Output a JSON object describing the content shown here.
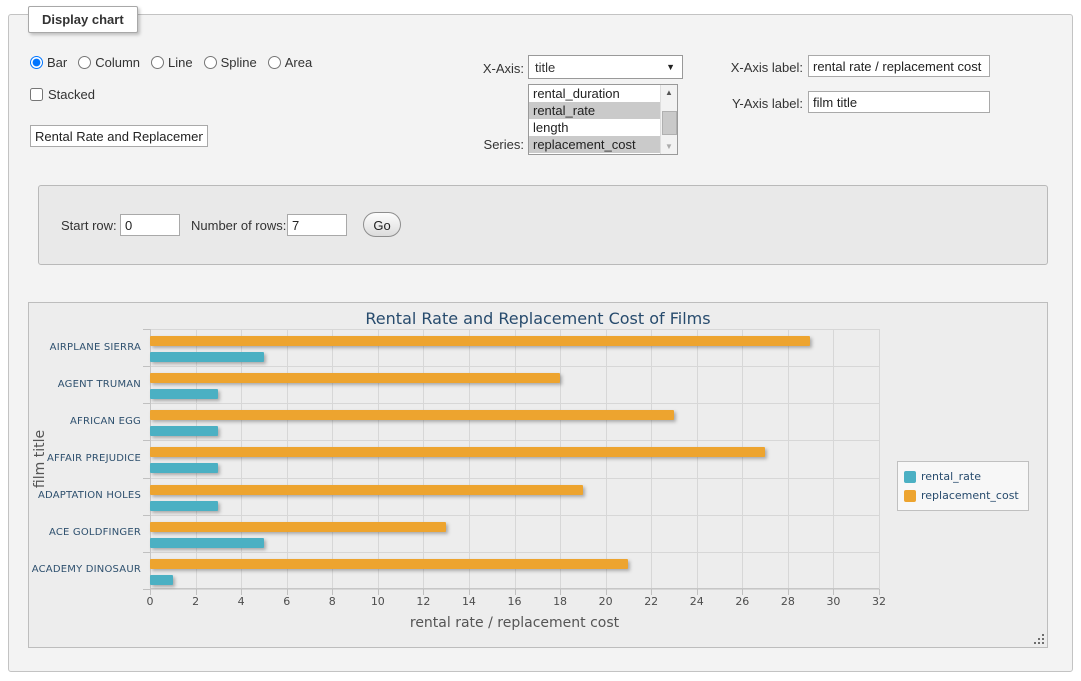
{
  "window": {
    "legend_title": "Display chart"
  },
  "chart_type": {
    "options": [
      "Bar",
      "Column",
      "Line",
      "Spline",
      "Area"
    ],
    "selected": "Bar"
  },
  "stacked": {
    "label": "Stacked",
    "checked": false
  },
  "chart_title_input": {
    "value": "Rental Rate and Replacement Cost of Films"
  },
  "x_axis_select": {
    "label": "X-Axis:",
    "value": "title"
  },
  "series_listbox": {
    "label": "Series:",
    "options": [
      {
        "label": "rental_duration",
        "selected": false
      },
      {
        "label": "rental_rate",
        "selected": true
      },
      {
        "label": "length",
        "selected": false
      },
      {
        "label": "replacement_cost",
        "selected": true
      }
    ]
  },
  "x_axis_label_input": {
    "label": "X-Axis label:",
    "value": "rental rate / replacement cost"
  },
  "y_axis_label_input": {
    "label": "Y-Axis label:",
    "value": "film title"
  },
  "rows_panel": {
    "start_row_label": "Start row:",
    "start_row_value": "0",
    "number_of_rows_label": "Number of rows:",
    "number_of_rows_value": "7",
    "go_label": "Go"
  },
  "chart_data": {
    "type": "bar",
    "title": "Rental Rate and Replacement Cost of Films",
    "categories": [
      "AIRPLANE SIERRA",
      "AGENT TRUMAN",
      "AFRICAN EGG",
      "AFFAIR PREJUDICE",
      "ADAPTATION HOLES",
      "ACE GOLDFINGER",
      "ACADEMY DINOSAUR"
    ],
    "series": [
      {
        "name": "rental_rate",
        "color": "#4BB0C3",
        "values": [
          4.99,
          2.99,
          2.99,
          2.99,
          2.99,
          4.99,
          0.99
        ]
      },
      {
        "name": "replacement_cost",
        "color": "#EDA42F",
        "values": [
          28.99,
          17.99,
          22.99,
          26.99,
          18.99,
          12.99,
          20.99
        ]
      }
    ],
    "bar_row_order": [
      "replacement_cost",
      "rental_rate"
    ],
    "xlabel": "rental rate / replacement cost",
    "ylabel": "film title",
    "xlim": [
      0,
      32
    ],
    "xtick_step": 2,
    "grid": true,
    "legend_position": "right-middle",
    "background": "#ededed"
  }
}
